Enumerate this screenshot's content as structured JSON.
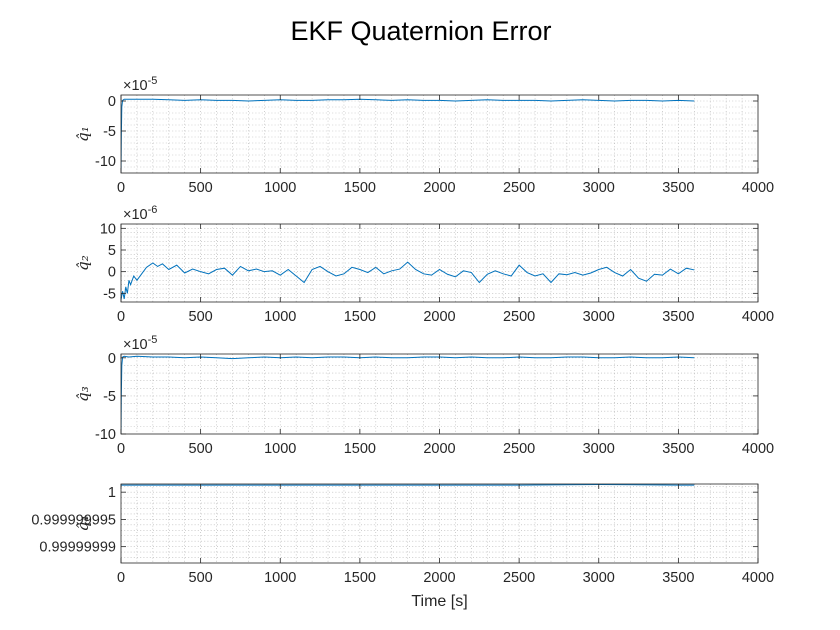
{
  "figure": {
    "title": "EKF Quaternion Error"
  },
  "colors": {
    "series": "#0072bd",
    "axes": "#262626",
    "grid": "#b0b0b0"
  },
  "chart_data": [
    {
      "type": "line",
      "ylabel": "q̂₁",
      "exponent_label": "×10",
      "exponent_power": "-5",
      "xlim": [
        0,
        4000
      ],
      "ylim": [
        -12,
        1
      ],
      "xticks": [
        0,
        500,
        1000,
        1500,
        2000,
        2500,
        3000,
        3500,
        4000
      ],
      "xtick_labels": [
        "0",
        "500",
        "1000",
        "1500",
        "2000",
        "2500",
        "3000",
        "3500",
        "4000"
      ],
      "yticks": [
        -10,
        -5,
        0
      ],
      "ytick_labels": [
        "-10",
        "-5",
        "0"
      ],
      "grid": "on (minor)",
      "series": [
        {
          "x": [
            0,
            2,
            5,
            10,
            20,
            50,
            100,
            200,
            300,
            400,
            500,
            600,
            700,
            800,
            900,
            1000,
            1100,
            1200,
            1300,
            1400,
            1500,
            1600,
            1700,
            1800,
            1900,
            2000,
            2100,
            2200,
            2300,
            2400,
            2500,
            2600,
            2700,
            2800,
            2900,
            3000,
            3100,
            3200,
            3300,
            3400,
            3500,
            3600
          ],
          "y": [
            -12,
            -6,
            -1,
            0.1,
            0.3,
            0.3,
            0.3,
            0.3,
            0.2,
            0.1,
            0.2,
            0.1,
            0.1,
            0.0,
            0.1,
            0.2,
            0.1,
            0.1,
            0.2,
            0.2,
            0.3,
            0.2,
            0.1,
            0.2,
            0.1,
            0.1,
            0.0,
            0.1,
            0.2,
            0.1,
            0.1,
            0.1,
            0.0,
            0.1,
            0.2,
            0.1,
            0.0,
            0.1,
            0.1,
            0.0,
            0.1,
            0.0
          ]
        }
      ]
    },
    {
      "type": "line",
      "ylabel": "q̂₂",
      "exponent_label": "×10",
      "exponent_power": "-6",
      "xlim": [
        0,
        4000
      ],
      "ylim": [
        -7,
        11
      ],
      "xticks": [
        0,
        500,
        1000,
        1500,
        2000,
        2500,
        3000,
        3500,
        4000
      ],
      "xtick_labels": [
        "0",
        "500",
        "1000",
        "1500",
        "2000",
        "2500",
        "3000",
        "3500",
        "4000"
      ],
      "yticks": [
        -5,
        0,
        5,
        10
      ],
      "ytick_labels": [
        "-5",
        "0",
        "5",
        "10"
      ],
      "grid": "on (minor)",
      "series": [
        {
          "x": [
            0,
            10,
            20,
            30,
            40,
            50,
            60,
            80,
            100,
            130,
            160,
            200,
            230,
            260,
            300,
            350,
            400,
            450,
            500,
            550,
            600,
            650,
            700,
            750,
            800,
            850,
            900,
            950,
            1000,
            1050,
            1100,
            1150,
            1200,
            1250,
            1300,
            1350,
            1400,
            1450,
            1500,
            1550,
            1600,
            1650,
            1700,
            1750,
            1800,
            1850,
            1900,
            1950,
            2000,
            2050,
            2100,
            2150,
            2200,
            2250,
            2300,
            2350,
            2400,
            2450,
            2500,
            2550,
            2600,
            2650,
            2700,
            2750,
            2800,
            2850,
            2900,
            2950,
            3000,
            3050,
            3100,
            3150,
            3200,
            3250,
            3300,
            3350,
            3400,
            3450,
            3500,
            3550,
            3600
          ],
          "y": [
            -6.5,
            -4.5,
            -6.3,
            -3.5,
            -5.0,
            -2.0,
            -3.0,
            -1.0,
            -2.0,
            -0.5,
            1.0,
            2.0,
            1.2,
            1.8,
            0.5,
            1.5,
            -0.3,
            0.6,
            0.0,
            -0.5,
            0.5,
            0.8,
            -0.8,
            1.2,
            0.2,
            0.6,
            0.0,
            0.2,
            -0.8,
            0.5,
            -1.0,
            -2.5,
            0.5,
            1.2,
            0.0,
            -1.0,
            -0.5,
            1.0,
            0.5,
            -0.2,
            1.0,
            -0.5,
            0.2,
            0.6,
            2.2,
            0.5,
            -0.5,
            -0.8,
            0.5,
            -0.6,
            -1.2,
            0.2,
            -0.2,
            -2.5,
            -0.6,
            0.2,
            -0.5,
            -1.0,
            1.5,
            -0.2,
            -1.0,
            -0.5,
            -2.5,
            -0.5,
            -0.7,
            -0.2,
            -0.8,
            -0.3,
            0.5,
            1.0,
            -0.2,
            -1.0,
            0.5,
            -1.5,
            -2.2,
            -0.6,
            -0.8,
            0.6,
            -0.5,
            0.8,
            0.4
          ]
        }
      ]
    },
    {
      "type": "line",
      "ylabel": "q̂₃",
      "exponent_label": "×10",
      "exponent_power": "-5",
      "xlim": [
        0,
        4000
      ],
      "ylim": [
        -10,
        0.5
      ],
      "xticks": [
        0,
        500,
        1000,
        1500,
        2000,
        2500,
        3000,
        3500,
        4000
      ],
      "xtick_labels": [
        "0",
        "500",
        "1000",
        "1500",
        "2000",
        "2500",
        "3000",
        "3500",
        "4000"
      ],
      "yticks": [
        -10,
        -5,
        0
      ],
      "ytick_labels": [
        "-10",
        "-5",
        "0"
      ],
      "grid": "on (minor)",
      "series": [
        {
          "x": [
            0,
            2,
            5,
            10,
            20,
            50,
            100,
            200,
            300,
            400,
            500,
            600,
            700,
            800,
            900,
            1000,
            1100,
            1200,
            1300,
            1400,
            1500,
            1600,
            1700,
            1800,
            1900,
            2000,
            2100,
            2200,
            2300,
            2400,
            2500,
            2600,
            2700,
            2800,
            2900,
            3000,
            3100,
            3200,
            3300,
            3400,
            3500,
            3600
          ],
          "y": [
            -10,
            -5,
            -1,
            0.1,
            0.2,
            0.1,
            0.2,
            0.1,
            0.1,
            0.0,
            0.1,
            0.0,
            -0.1,
            0.0,
            0.1,
            0.0,
            0.1,
            0.0,
            0.1,
            0.1,
            0.0,
            0.1,
            0.0,
            0.0,
            0.1,
            0.1,
            0.0,
            0.1,
            0.0,
            0.0,
            0.1,
            0.0,
            0.0,
            0.1,
            0.1,
            0.0,
            0.0,
            0.1,
            0.0,
            0.0,
            0.1,
            0.0
          ]
        }
      ]
    },
    {
      "type": "line",
      "ylabel": "q̂₄",
      "xlim": [
        0,
        4000
      ],
      "ylim": [
        0.999999987,
        1.0000000015
      ],
      "xticks": [
        0,
        500,
        1000,
        1500,
        2000,
        2500,
        3000,
        3500,
        4000
      ],
      "xtick_labels": [
        "0",
        "500",
        "1000",
        "1500",
        "2000",
        "2500",
        "3000",
        "3500",
        "4000"
      ],
      "yticks": [
        0.99999999,
        0.999999995,
        1
      ],
      "ytick_labels": [
        "0.99999999",
        "0.999999995",
        "1"
      ],
      "xlabel": "Time [s]",
      "grid": "on (minor)",
      "series": [
        {
          "x": [
            0,
            500,
            1000,
            1500,
            2000,
            2500,
            3000,
            3500,
            3600
          ],
          "y": [
            1.0000000013,
            1.0000000013,
            1.0000000013,
            1.0000000013,
            1.0000000013,
            1.0000000013,
            1.0000000014,
            1.0000000013,
            1.0000000013
          ]
        }
      ]
    }
  ]
}
